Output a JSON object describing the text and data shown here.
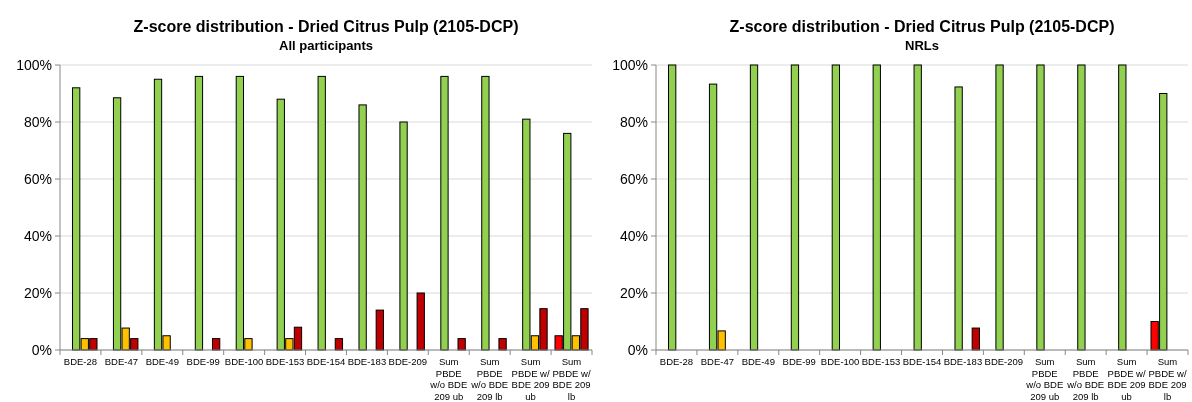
{
  "chart_data": [
    {
      "type": "bar",
      "title": "Z-score distribution - Dried Citrus Pulp (2105-DCP)",
      "subtitle": "All participants",
      "categories": [
        "BDE-28",
        "BDE-47",
        "BDE-49",
        "BDE-99",
        "BDE-100",
        "BDE-153",
        "BDE-154",
        "BDE-183",
        "BDE-209",
        "Sum PBDE w/o BDE 209 ub",
        "Sum PBDE w/o BDE 209 lb",
        "Sum PBDE w/ BDE 209 ub",
        "Sum PBDE w/ BDE 209 lb"
      ],
      "series": [
        {
          "color": "#ff0000",
          "values": [
            null,
            null,
            null,
            null,
            null,
            null,
            null,
            null,
            null,
            null,
            null,
            null,
            5
          ]
        },
        {
          "color": "#92d050",
          "values": [
            92,
            88.5,
            95,
            96,
            96,
            88,
            96,
            86,
            80,
            96,
            96,
            81,
            76
          ]
        },
        {
          "color": "#ffc000",
          "values": [
            4,
            7.7,
            5,
            null,
            4,
            4,
            null,
            null,
            null,
            null,
            null,
            5,
            5
          ]
        },
        {
          "color": "#c00000",
          "values": [
            4,
            4,
            null,
            4,
            null,
            8,
            4,
            14,
            20,
            4,
            4,
            14.5,
            14.5
          ]
        }
      ],
      "ylim": [
        0,
        100
      ],
      "yticks": [
        {
          "value": 0,
          "label": "0%"
        },
        {
          "value": 20,
          "label": "20%"
        },
        {
          "value": 40,
          "label": "40%"
        },
        {
          "value": 60,
          "label": "60%"
        },
        {
          "value": 80,
          "label": "80%"
        },
        {
          "value": 100,
          "label": "100%"
        }
      ],
      "grid": "y"
    },
    {
      "type": "bar",
      "title": "Z-score distribution - Dried Citrus Pulp (2105-DCP)",
      "subtitle": "NRLs",
      "categories": [
        "BDE-28",
        "BDE-47",
        "BDE-49",
        "BDE-99",
        "BDE-100",
        "BDE-153",
        "BDE-154",
        "BDE-183",
        "BDE-209",
        "Sum PBDE w/o BDE 209 ub",
        "Sum PBDE w/o BDE 209 lb",
        "Sum PBDE w/ BDE 209 ub",
        "Sum PBDE w/ BDE 209 lb"
      ],
      "series": [
        {
          "color": "#ff0000",
          "values": [
            null,
            null,
            null,
            null,
            null,
            null,
            null,
            null,
            null,
            null,
            null,
            null,
            10
          ]
        },
        {
          "color": "#92d050",
          "values": [
            100,
            93.3,
            100,
            100,
            100,
            100,
            100,
            92.3,
            100,
            100,
            100,
            100,
            90
          ]
        },
        {
          "color": "#ffc000",
          "values": [
            null,
            6.7,
            null,
            null,
            null,
            null,
            null,
            null,
            null,
            null,
            null,
            null,
            null
          ]
        },
        {
          "color": "#c00000",
          "values": [
            null,
            null,
            null,
            null,
            null,
            null,
            null,
            7.7,
            null,
            null,
            null,
            null,
            null
          ]
        }
      ],
      "ylim": [
        0,
        100
      ],
      "yticks": [
        {
          "value": 0,
          "label": "0%"
        },
        {
          "value": 20,
          "label": "20%"
        },
        {
          "value": 40,
          "label": "40%"
        },
        {
          "value": 60,
          "label": "60%"
        },
        {
          "value": 80,
          "label": "80%"
        },
        {
          "value": 100,
          "label": "100%"
        }
      ],
      "grid": "y"
    }
  ]
}
